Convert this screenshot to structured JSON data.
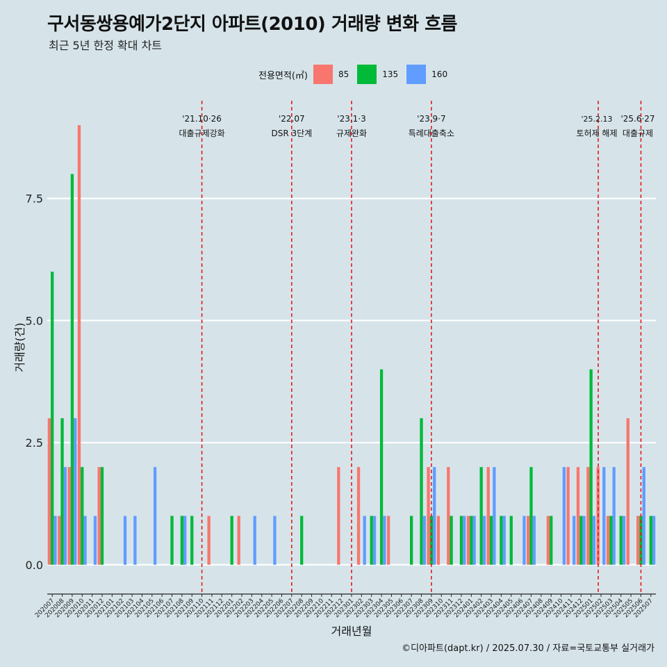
{
  "title": "구서동쌍용예가2단지 아파트(2010) 거래량 변화 흐름",
  "subtitle": "최근 5년 한정 확대 차트",
  "caption": "©디아파트(dapt.kr) / 2025.07.30 / 자료=국토교통부 실거래가",
  "legend": {
    "title": "전용면적(㎡)",
    "items": [
      {
        "label": "85",
        "color": "#F8766D"
      },
      {
        "label": "135",
        "color": "#00BA38"
      },
      {
        "label": "160",
        "color": "#619CFF"
      }
    ]
  },
  "chart_data": {
    "type": "bar",
    "xlabel": "거래년월",
    "ylabel": "거래량(건)",
    "ylim": [
      -0.6,
      9.5
    ],
    "yticks": [
      0,
      2.5,
      5,
      7.5
    ],
    "ytick_labels": [
      "0.0",
      "2.5",
      "5.0",
      "7.5"
    ],
    "grid": true,
    "legend_position": "top",
    "categories": [
      "202007",
      "202008",
      "202009",
      "202010",
      "202011",
      "202012",
      "202101",
      "202102",
      "202103",
      "202104",
      "202105",
      "202106",
      "202107",
      "202108",
      "202109",
      "202110",
      "202111",
      "202112",
      "202201",
      "202202",
      "202203",
      "202204",
      "202205",
      "202206",
      "202207",
      "202208",
      "202209",
      "202210",
      "202211",
      "202212",
      "202301",
      "202302",
      "202303",
      "202304",
      "202305",
      "202306",
      "202307",
      "202308",
      "202309",
      "202310",
      "202311",
      "202312",
      "202401",
      "202402",
      "202403",
      "202404",
      "202405",
      "202406",
      "202407",
      "202408",
      "202409",
      "202410",
      "202411",
      "202412",
      "202501",
      "202502",
      "202503",
      "202504",
      "202505",
      "202506",
      "202507"
    ],
    "series": [
      {
        "name": "85",
        "color": "#F8766D",
        "values": [
          3,
          1,
          2,
          9,
          0,
          2,
          0,
          0,
          0,
          0,
          0,
          0,
          0,
          0,
          0,
          0,
          1,
          0,
          0,
          1,
          0,
          0,
          0,
          0,
          0,
          0,
          0,
          0,
          0,
          2,
          0,
          2,
          0,
          0,
          1,
          0,
          0,
          0,
          2,
          1,
          2,
          0,
          1,
          0,
          2,
          0,
          0,
          0,
          1,
          0,
          1,
          0,
          2,
          2,
          2,
          2,
          1,
          0,
          3,
          1,
          0
        ]
      },
      {
        "name": "135",
        "color": "#00BA38",
        "values": [
          6,
          3,
          8,
          2,
          0,
          2,
          0,
          0,
          0,
          0,
          0,
          0,
          1,
          1,
          1,
          0,
          0,
          0,
          1,
          0,
          0,
          0,
          0,
          0,
          0,
          1,
          0,
          0,
          0,
          0,
          0,
          0,
          1,
          4,
          0,
          0,
          1,
          3,
          1,
          0,
          1,
          1,
          1,
          2,
          1,
          1,
          1,
          0,
          2,
          0,
          1,
          0,
          0,
          1,
          4,
          0,
          1,
          1,
          0,
          1,
          1
        ]
      },
      {
        "name": "160",
        "color": "#619CFF",
        "values": [
          1,
          2,
          3,
          1,
          1,
          0,
          0,
          1,
          1,
          0,
          2,
          0,
          0,
          1,
          0,
          0,
          0,
          0,
          0,
          0,
          1,
          0,
          1,
          0,
          0,
          0,
          0,
          0,
          0,
          0,
          0,
          1,
          1,
          1,
          0,
          0,
          0,
          1,
          2,
          0,
          0,
          1,
          1,
          1,
          2,
          1,
          0,
          1,
          1,
          0,
          0,
          2,
          1,
          1,
          1,
          2,
          2,
          1,
          0,
          2,
          1
        ]
      }
    ],
    "events": [
      {
        "x": "202110",
        "date": "'21.10·26",
        "label": "대출규제강화"
      },
      {
        "x": "202207",
        "date": "'22.07",
        "label": "DSR 3단계"
      },
      {
        "x": "202301",
        "date": "'23.1·3",
        "label": "규제완화"
      },
      {
        "x": "202309",
        "date": "'23.9·7",
        "label": "특례대출축소"
      },
      {
        "x": "202502",
        "date": "'25.2.13",
        "label": "토허제 해제"
      },
      {
        "x": "202506",
        "date": "'25.6·27",
        "label": "대출규제"
      }
    ]
  }
}
